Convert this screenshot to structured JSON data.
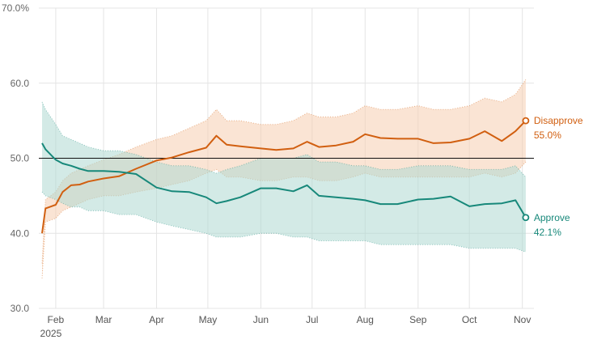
{
  "chart_data": {
    "type": "line",
    "ylim": [
      30,
      70
    ],
    "y_ticks": [
      "70.0%",
      "60.0",
      "50.0",
      "40.0",
      "30.0"
    ],
    "y_tick_values": [
      70,
      60,
      50,
      40,
      30
    ],
    "x_ticks": [
      {
        "label": "Feb",
        "sub": "2025",
        "date": "2025-02-01"
      },
      {
        "label": "Mar",
        "sub": "",
        "date": "2025-03-01"
      },
      {
        "label": "Apr",
        "sub": "",
        "date": "2025-04-01"
      },
      {
        "label": "May",
        "sub": "",
        "date": "2025-05-01"
      },
      {
        "label": "Jun",
        "sub": "",
        "date": "2025-06-01"
      },
      {
        "label": "Jul",
        "sub": "",
        "date": "2025-07-01"
      },
      {
        "label": "Aug",
        "sub": "",
        "date": "2025-08-01"
      },
      {
        "label": "Sep",
        "sub": "",
        "date": "2025-09-01"
      },
      {
        "label": "Oct",
        "sub": "",
        "date": "2025-10-01"
      },
      {
        "label": "Nov",
        "sub": "",
        "date": "2025-11-01"
      }
    ],
    "reference_line": 50,
    "grid": true,
    "series": [
      {
        "name": "Disapprove",
        "end_label": "55.0%",
        "color": "#d15f10",
        "band_color": "#f6cdb1",
        "x": [
          "2025-01-24",
          "2025-01-26",
          "2025-02-01",
          "2025-02-05",
          "2025-02-10",
          "2025-02-15",
          "2025-02-20",
          "2025-03-01",
          "2025-03-10",
          "2025-03-20",
          "2025-04-01",
          "2025-04-10",
          "2025-04-20",
          "2025-04-30",
          "2025-05-06",
          "2025-05-12",
          "2025-05-20",
          "2025-06-01",
          "2025-06-10",
          "2025-06-20",
          "2025-06-28",
          "2025-07-05",
          "2025-07-15",
          "2025-07-25",
          "2025-08-01",
          "2025-08-10",
          "2025-08-20",
          "2025-09-01",
          "2025-09-10",
          "2025-09-20",
          "2025-10-01",
          "2025-10-10",
          "2025-10-20",
          "2025-10-28",
          "2025-11-03"
        ],
        "values": [
          40.0,
          43.3,
          43.8,
          45.5,
          46.4,
          46.5,
          46.9,
          47.3,
          47.6,
          48.6,
          49.7,
          50.1,
          50.8,
          51.4,
          53.0,
          51.8,
          51.6,
          51.3,
          51.1,
          51.3,
          52.2,
          51.5,
          51.7,
          52.2,
          53.2,
          52.7,
          52.6,
          52.6,
          52.0,
          52.1,
          52.6,
          53.6,
          52.3,
          53.6,
          55.0
        ],
        "upper": [
          36.0,
          44.5,
          45.5,
          47.0,
          48.0,
          48.5,
          49.0,
          49.8,
          50.5,
          51.5,
          52.5,
          53.0,
          54.0,
          55.0,
          56.5,
          55.0,
          55.0,
          54.5,
          54.5,
          55.0,
          56.0,
          55.5,
          55.5,
          56.0,
          57.0,
          56.5,
          56.5,
          57.0,
          56.5,
          56.5,
          57.0,
          58.0,
          57.5,
          58.5,
          60.5
        ],
        "lower": [
          34.0,
          41.5,
          42.0,
          43.0,
          43.5,
          44.0,
          44.5,
          45.0,
          45.0,
          45.5,
          46.0,
          46.5,
          47.0,
          48.0,
          48.5,
          47.5,
          47.5,
          47.0,
          47.0,
          47.5,
          47.5,
          47.0,
          47.0,
          47.5,
          48.0,
          47.5,
          47.5,
          47.5,
          47.5,
          47.5,
          47.5,
          48.0,
          47.5,
          48.0,
          49.5
        ]
      },
      {
        "name": "Approve",
        "end_label": "42.1%",
        "color": "#17887a",
        "band_color": "#aed9d2",
        "x": [
          "2025-01-24",
          "2025-01-26",
          "2025-02-01",
          "2025-02-05",
          "2025-02-10",
          "2025-02-15",
          "2025-02-20",
          "2025-03-01",
          "2025-03-10",
          "2025-03-20",
          "2025-04-01",
          "2025-04-10",
          "2025-04-20",
          "2025-04-30",
          "2025-05-06",
          "2025-05-12",
          "2025-05-20",
          "2025-06-01",
          "2025-06-10",
          "2025-06-20",
          "2025-06-28",
          "2025-07-05",
          "2025-07-15",
          "2025-07-25",
          "2025-08-01",
          "2025-08-10",
          "2025-08-20",
          "2025-09-01",
          "2025-09-10",
          "2025-09-20",
          "2025-10-01",
          "2025-10-10",
          "2025-10-20",
          "2025-10-28",
          "2025-11-03"
        ],
        "values": [
          52.0,
          51.2,
          49.8,
          49.3,
          49.0,
          48.6,
          48.3,
          48.3,
          48.2,
          47.9,
          46.1,
          45.6,
          45.5,
          44.8,
          44.0,
          44.3,
          44.8,
          46.0,
          46.0,
          45.6,
          46.4,
          45.0,
          44.8,
          44.6,
          44.4,
          43.9,
          43.9,
          44.5,
          44.6,
          44.9,
          43.6,
          43.9,
          44.0,
          44.4,
          42.1
        ],
        "upper": [
          57.5,
          56.5,
          54.5,
          53.0,
          52.5,
          52.0,
          51.5,
          51.0,
          51.0,
          50.5,
          49.5,
          49.0,
          49.0,
          48.5,
          48.0,
          48.5,
          49.0,
          50.0,
          50.0,
          50.0,
          50.5,
          49.5,
          49.5,
          49.0,
          49.0,
          48.5,
          48.5,
          49.0,
          49.0,
          49.0,
          48.5,
          48.5,
          48.5,
          49.0,
          47.5
        ],
        "lower": [
          45.5,
          45.0,
          44.5,
          44.0,
          43.5,
          43.5,
          43.0,
          43.0,
          42.5,
          42.5,
          41.5,
          41.0,
          40.5,
          40.0,
          39.5,
          39.5,
          39.5,
          40.0,
          40.0,
          39.5,
          39.5,
          39.0,
          39.0,
          39.0,
          39.0,
          38.5,
          38.5,
          38.5,
          38.5,
          38.5,
          38.0,
          38.0,
          38.0,
          38.0,
          37.5
        ]
      }
    ]
  }
}
